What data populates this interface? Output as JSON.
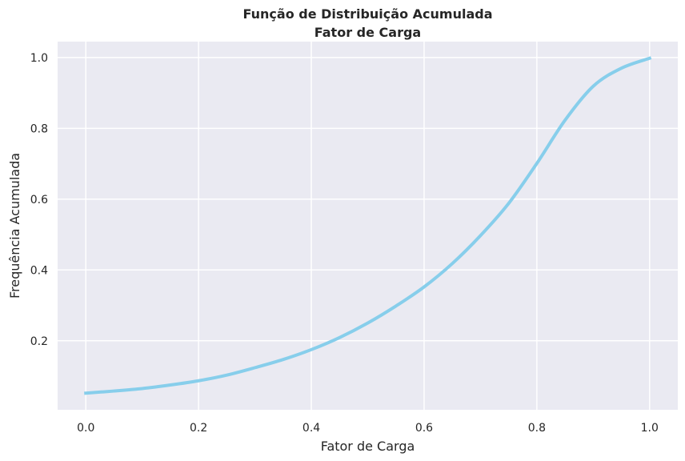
{
  "chart_data": {
    "type": "line",
    "title": "Função de Distribuição Acumulada",
    "subtitle": "Fator de Carga",
    "xlabel": "Fator de Carga",
    "ylabel": "Frequência Acumulada",
    "xlim": [
      -0.05,
      1.05
    ],
    "ylim": [
      0.005,
      1.045
    ],
    "x_ticks": [
      0.0,
      0.2,
      0.4,
      0.6,
      0.8,
      1.0
    ],
    "x_tick_labels": [
      "0.0",
      "0.2",
      "0.4",
      "0.6",
      "0.8",
      "1.0"
    ],
    "y_ticks": [
      0.2,
      0.4,
      0.6,
      0.8,
      1.0
    ],
    "y_tick_labels": [
      "0.2",
      "0.4",
      "0.6",
      "0.8",
      "1.0"
    ],
    "grid": true,
    "colors": {
      "line": "#87ceeb",
      "background": "#eaeaf2",
      "grid": "#ffffff"
    },
    "series": [
      {
        "x": [
          0.0,
          0.05,
          0.1,
          0.15,
          0.2,
          0.25,
          0.3,
          0.35,
          0.4,
          0.45,
          0.5,
          0.55,
          0.6,
          0.65,
          0.7,
          0.75,
          0.8,
          0.85,
          0.9,
          0.95,
          1.0
        ],
        "y": [
          0.052,
          0.058,
          0.065,
          0.075,
          0.087,
          0.103,
          0.124,
          0.147,
          0.175,
          0.209,
          0.25,
          0.298,
          0.352,
          0.418,
          0.497,
          0.588,
          0.701,
          0.823,
          0.919,
          0.97,
          0.998
        ]
      }
    ]
  }
}
